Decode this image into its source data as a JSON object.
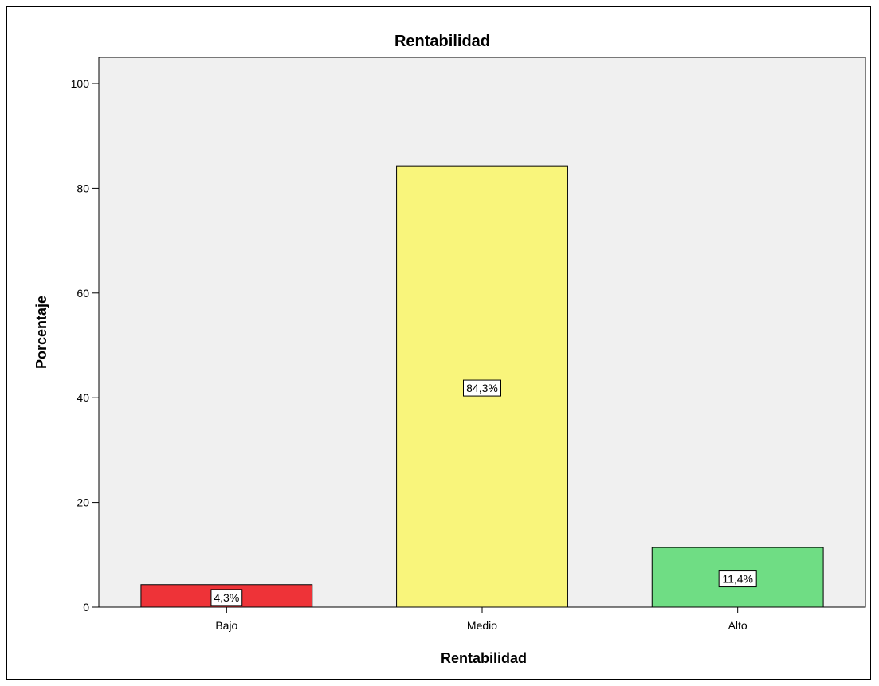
{
  "chart_data": {
    "type": "bar",
    "title": "Rentabilidad",
    "xlabel": "Rentabilidad",
    "ylabel": "Porcentaje",
    "categories": [
      "Bajo",
      "Medio",
      "Alto"
    ],
    "values": [
      4.3,
      84.3,
      11.4
    ],
    "data_labels": [
      "4,3%",
      "84,3%",
      "11,4%"
    ],
    "colors": [
      "#ee3338",
      "#f9f57b",
      "#6fdd84"
    ],
    "ylim": [
      0,
      105
    ],
    "yticks": [
      0,
      20,
      40,
      60,
      80,
      100
    ],
    "grid": false,
    "plot_background": "#f0f0f0",
    "legend": "none"
  }
}
